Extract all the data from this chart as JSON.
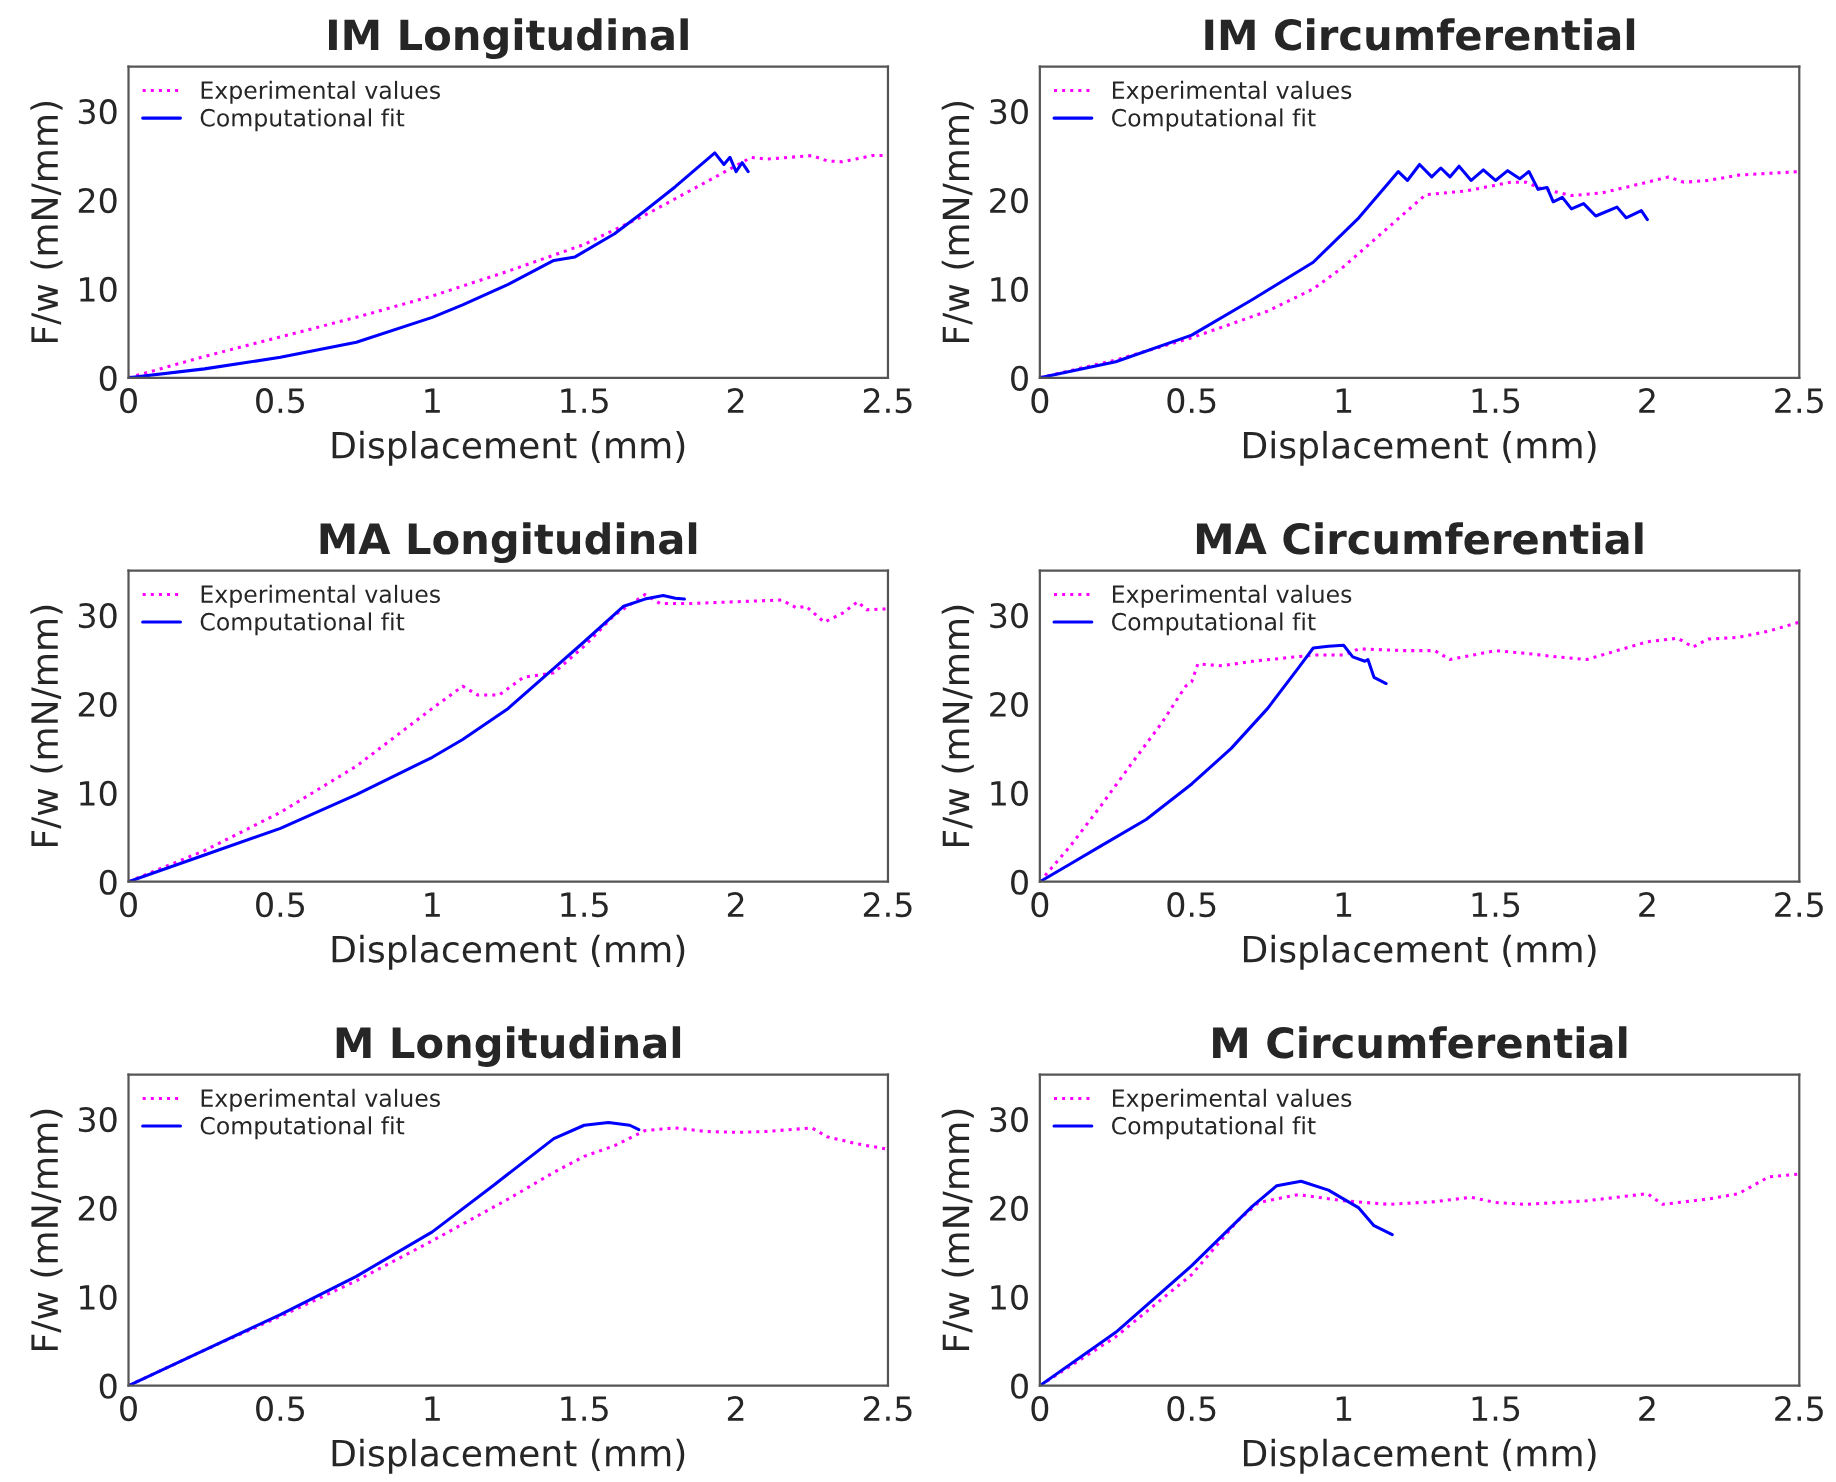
{
  "chart_data": [
    {
      "type": "line",
      "title": "IM Longitudinal",
      "xlabel": "Displacement (mm)",
      "ylabel": "F/w (mN/mm)",
      "xlim": [
        0,
        2.5
      ],
      "xticks": [
        0,
        0.5,
        1,
        1.5,
        2,
        2.5
      ],
      "ylim": [
        0,
        35
      ],
      "yticks": [
        0,
        10,
        20,
        30
      ],
      "legend": "top left",
      "series": [
        {
          "name": "Experimental values",
          "color": "#ff00ff",
          "line_style": "dotted",
          "x": [
            0,
            0.25,
            0.5,
            0.75,
            1,
            1.25,
            1.5,
            1.7,
            1.9,
            2.05,
            2.1,
            2.25,
            2.3,
            2.35,
            2.45,
            2.5
          ],
          "values": [
            0,
            2.4,
            4.6,
            6.8,
            9.2,
            12,
            15,
            18.3,
            22,
            24.8,
            24.6,
            25,
            24.4,
            24.3,
            25,
            25
          ]
        },
        {
          "name": "Computational fit",
          "color": "#0000ff",
          "line_style": "solid",
          "x": [
            0,
            0.25,
            0.5,
            0.75,
            1,
            1.1,
            1.25,
            1.4,
            1.47,
            1.6,
            1.7,
            1.8,
            1.93,
            1.96,
            1.98,
            2.0,
            2.02,
            2.04
          ],
          "values": [
            0,
            1,
            2.3,
            4,
            6.8,
            8.2,
            10.5,
            13.2,
            13.6,
            16.2,
            18.8,
            21.5,
            25.3,
            24,
            24.8,
            23.2,
            24.2,
            23.2
          ]
        }
      ]
    },
    {
      "type": "line",
      "title": "IM Circumferential",
      "xlabel": "Displacement (mm)",
      "ylabel": "F/w (mN/mm)",
      "xlim": [
        0,
        2.5
      ],
      "xticks": [
        0,
        0.5,
        1,
        1.5,
        2,
        2.5
      ],
      "ylim": [
        0,
        35
      ],
      "yticks": [
        0,
        10,
        20,
        30
      ],
      "legend": "top left",
      "series": [
        {
          "name": "Experimental values",
          "color": "#ff00ff",
          "line_style": "dotted",
          "x": [
            0,
            0.25,
            0.5,
            0.75,
            0.9,
            1,
            1.1,
            1.2,
            1.27,
            1.4,
            1.55,
            1.6,
            1.65,
            1.75,
            1.85,
            2,
            2.07,
            2.12,
            2.2,
            2.3,
            2.5
          ],
          "values": [
            0,
            2,
            4.5,
            7.5,
            10,
            12.5,
            15.5,
            18.5,
            20.6,
            21,
            22,
            22,
            21.3,
            20.5,
            20.8,
            22,
            22.6,
            22,
            22.2,
            22.8,
            23.2
          ]
        },
        {
          "name": "Computational fit",
          "color": "#0000ff",
          "line_style": "solid",
          "x": [
            0,
            0.25,
            0.5,
            0.7,
            0.9,
            1.05,
            1.15,
            1.18,
            1.21,
            1.25,
            1.29,
            1.32,
            1.35,
            1.38,
            1.42,
            1.46,
            1.5,
            1.54,
            1.58,
            1.61,
            1.64,
            1.67,
            1.69,
            1.72,
            1.75,
            1.79,
            1.83,
            1.9,
            1.93,
            1.98,
            2.0
          ],
          "values": [
            0,
            1.8,
            4.8,
            8.8,
            13,
            18,
            22,
            23.2,
            22.2,
            24,
            22.6,
            23.6,
            22.6,
            23.8,
            22.2,
            23.4,
            22.2,
            23.3,
            22.4,
            23.2,
            21.2,
            21.4,
            19.8,
            20.3,
            19,
            19.6,
            18.2,
            19.2,
            18,
            18.8,
            17.8
          ]
        }
      ]
    },
    {
      "type": "line",
      "title": "MA Longitudinal",
      "xlabel": "Displacement (mm)",
      "ylabel": "F/w (mN/mm)",
      "xlim": [
        0,
        2.5
      ],
      "xticks": [
        0,
        0.5,
        1,
        1.5,
        2,
        2.5
      ],
      "ylim": [
        0,
        35
      ],
      "yticks": [
        0,
        10,
        20,
        30
      ],
      "legend": "top left",
      "series": [
        {
          "name": "Experimental values",
          "color": "#ff00ff",
          "line_style": "dotted",
          "x": [
            0,
            0.25,
            0.5,
            0.75,
            1,
            1.1,
            1.15,
            1.22,
            1.3,
            1.4,
            1.5,
            1.6,
            1.7,
            1.75,
            1.85,
            2,
            2.15,
            2.2,
            2.23,
            2.29,
            2.35,
            2.4,
            2.43,
            2.5
          ],
          "values": [
            0,
            3.5,
            7.8,
            13,
            19.5,
            22,
            21,
            21,
            23,
            23.5,
            26.5,
            30,
            32.3,
            31.3,
            31.3,
            31.5,
            31.7,
            30.8,
            31,
            29.2,
            30.2,
            31.5,
            30.6,
            30.7
          ]
        },
        {
          "name": "Computational fit",
          "color": "#0000ff",
          "line_style": "solid",
          "x": [
            0,
            0.25,
            0.5,
            0.75,
            1,
            1.1,
            1.25,
            1.4,
            1.5,
            1.63,
            1.7,
            1.73,
            1.76,
            1.8,
            1.83
          ],
          "values": [
            0,
            3,
            6,
            9.8,
            14,
            16,
            19.5,
            24,
            27,
            31,
            31.8,
            32,
            32.2,
            31.9,
            31.8
          ]
        }
      ]
    },
    {
      "type": "line",
      "title": "MA Circumferential",
      "xlabel": "Displacement (mm)",
      "ylabel": "F/w (mN/mm)",
      "xlim": [
        0,
        2.5
      ],
      "xticks": [
        0,
        0.5,
        1,
        1.5,
        2,
        2.5
      ],
      "ylim": [
        0,
        35
      ],
      "yticks": [
        0,
        10,
        20,
        30
      ],
      "legend": "top left",
      "series": [
        {
          "name": "Experimental values",
          "color": "#ff00ff",
          "line_style": "dotted",
          "x": [
            0,
            0.1,
            0.2,
            0.3,
            0.4,
            0.48,
            0.5,
            0.52,
            0.6,
            0.7,
            0.9,
            1.0,
            1.05,
            1.2,
            1.3,
            1.35,
            1.5,
            1.6,
            1.7,
            1.8,
            1.9,
            2,
            2.1,
            2.15,
            2.2,
            2.3,
            2.4,
            2.5
          ],
          "values": [
            0,
            4,
            8.5,
            13.2,
            17.8,
            22,
            22.5,
            24.5,
            24.3,
            24.8,
            25.5,
            25.5,
            26.2,
            26,
            26,
            25,
            26,
            25.7,
            25.3,
            25,
            26,
            27,
            27.4,
            26.4,
            27.3,
            27.5,
            28.2,
            29.2
          ]
        },
        {
          "name": "Computational fit",
          "color": "#0000ff",
          "line_style": "solid",
          "x": [
            0,
            0.1,
            0.2,
            0.35,
            0.5,
            0.63,
            0.75,
            0.85,
            0.9,
            0.95,
            1,
            1.03,
            1.07,
            1.08,
            1.1,
            1.14
          ],
          "values": [
            0,
            2,
            4,
            7,
            11,
            15,
            19.5,
            24,
            26.3,
            26.5,
            26.6,
            25.3,
            24.8,
            25,
            23,
            22.3
          ]
        }
      ]
    },
    {
      "type": "line",
      "title": "M Longitudinal",
      "xlabel": "Displacement (mm)",
      "ylabel": "F/w (mN/mm)",
      "xlim": [
        0,
        2.5
      ],
      "xticks": [
        0,
        0.5,
        1,
        1.5,
        2,
        2.5
      ],
      "ylim": [
        0,
        35
      ],
      "yticks": [
        0,
        10,
        20,
        30
      ],
      "legend": "top left",
      "series": [
        {
          "name": "Experimental values",
          "color": "#ff00ff",
          "line_style": "dotted",
          "x": [
            0,
            0.25,
            0.5,
            0.75,
            1,
            1.25,
            1.4,
            1.5,
            1.6,
            1.7,
            1.8,
            1.9,
            2,
            2.1,
            2.25,
            2.3,
            2.4,
            2.5
          ],
          "values": [
            0,
            4,
            7.8,
            11.8,
            16.3,
            21,
            24,
            25.8,
            27,
            28.7,
            29,
            28.6,
            28.5,
            28.6,
            29,
            28,
            27.2,
            26.6
          ]
        },
        {
          "name": "Computational fit",
          "color": "#0000ff",
          "line_style": "solid",
          "x": [
            0,
            0.25,
            0.5,
            0.75,
            1,
            1.2,
            1.4,
            1.5,
            1.58,
            1.65,
            1.68
          ],
          "values": [
            0,
            4,
            8,
            12.3,
            17.3,
            22.5,
            27.8,
            29.3,
            29.6,
            29.3,
            28.8
          ]
        }
      ]
    },
    {
      "type": "line",
      "title": "M Circumferential",
      "xlabel": "Displacement (mm)",
      "ylabel": "F/w (mN/mm)",
      "xlim": [
        0,
        2.5
      ],
      "xticks": [
        0,
        0.5,
        1,
        1.5,
        2,
        2.5
      ],
      "ylim": [
        0,
        35
      ],
      "yticks": [
        0,
        10,
        20,
        30
      ],
      "legend": "top left",
      "series": [
        {
          "name": "Experimental values",
          "color": "#ff00ff",
          "line_style": "dotted",
          "x": [
            0,
            0.25,
            0.5,
            0.65,
            0.72,
            0.85,
            1,
            1.15,
            1.3,
            1.42,
            1.5,
            1.6,
            1.8,
            2,
            2.05,
            2.2,
            2.3,
            2.4,
            2.5
          ],
          "values": [
            0,
            5.5,
            12.5,
            18.5,
            20.6,
            21.5,
            20.8,
            20.4,
            20.7,
            21.2,
            20.6,
            20.4,
            20.8,
            21.6,
            20.4,
            21,
            21.6,
            23.5,
            23.8
          ]
        },
        {
          "name": "Computational fit",
          "color": "#0000ff",
          "line_style": "solid",
          "x": [
            0,
            0.25,
            0.5,
            0.7,
            0.78,
            0.86,
            0.95,
            1.05,
            1.1,
            1.16
          ],
          "values": [
            0,
            6,
            13.5,
            20.2,
            22.5,
            23,
            22,
            20,
            18,
            17
          ]
        }
      ]
    }
  ]
}
